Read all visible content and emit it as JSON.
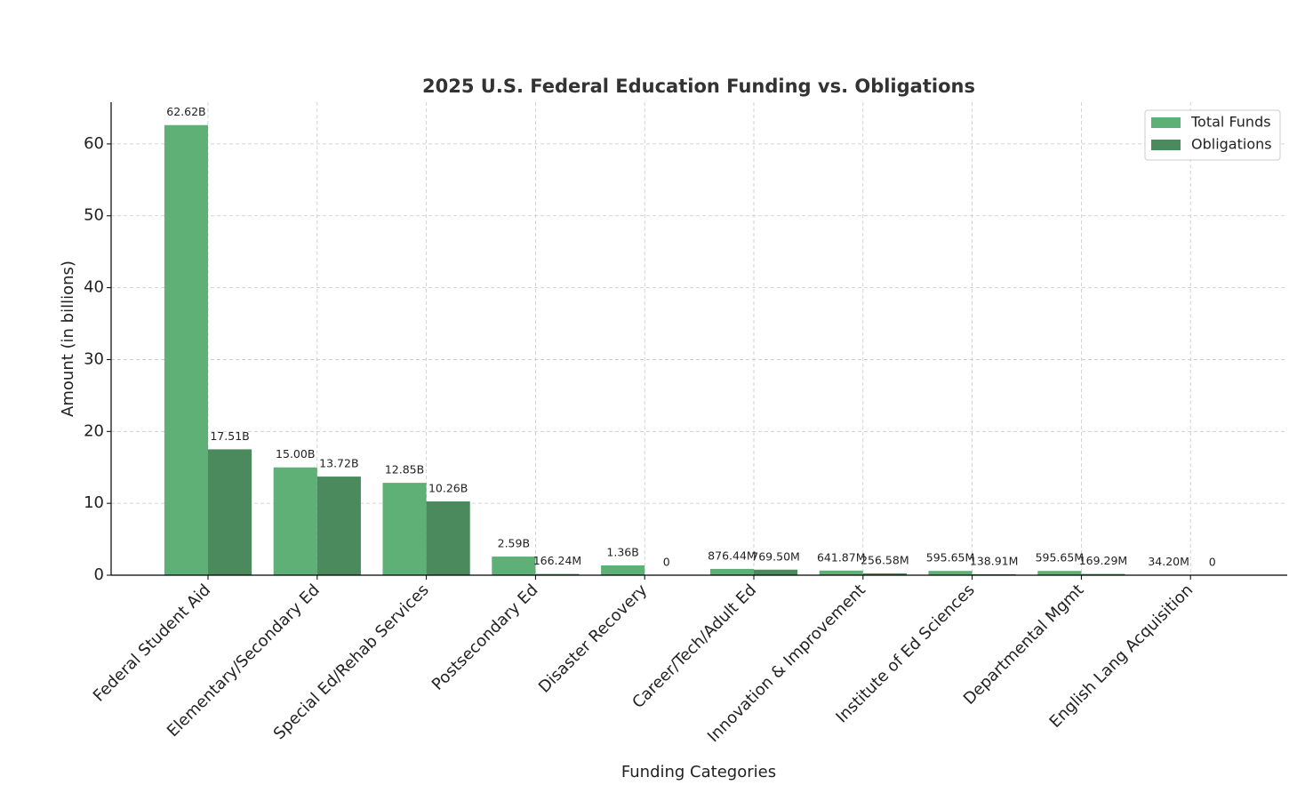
{
  "chart_data": {
    "type": "bar",
    "title": "2025 U.S. Federal Education Funding vs. Obligations",
    "x_label": "Funding Categories",
    "y_label": "Amount (in billions)",
    "categories": [
      "Federal Student Aid",
      "Elementary/Secondary Ed",
      "Special Ed/Rehab Services",
      "Postsecondary Ed",
      "Disaster Recovery",
      "Career/Tech/Adult Ed",
      "Innovation & Improvement",
      "Institute of Ed Sciences",
      "Departmental Mgmt",
      "English Lang Acquisition"
    ],
    "series": [
      {
        "name": "Total Funds",
        "color": "#5fb077",
        "values": [
          62.62,
          15.0,
          12.85,
          2.59,
          1.36,
          0.87644,
          0.64187,
          0.59565,
          0.59565,
          0.0342
        ],
        "value_labels": [
          "62.62B",
          "15.00B",
          "12.85B",
          "2.59B",
          "1.36B",
          "876.44M",
          "641.87M",
          "595.65M",
          "595.65M",
          "34.20M"
        ]
      },
      {
        "name": "Obligations",
        "color": "#4a8a5c",
        "values": [
          17.51,
          13.72,
          10.26,
          0.16624,
          0,
          0.7695,
          0.25658,
          0.13891,
          0.16929,
          0
        ],
        "value_labels": [
          "17.51B",
          "13.72B",
          "10.26B",
          "166.24M",
          "0",
          "769.50M",
          "256.58M",
          "138.91M",
          "169.29M",
          "0"
        ]
      }
    ],
    "ylim": [
      0,
      65.8
    ],
    "yticks": [
      0,
      10,
      20,
      30,
      40,
      50,
      60
    ],
    "grid": true,
    "legend": "upper right"
  }
}
